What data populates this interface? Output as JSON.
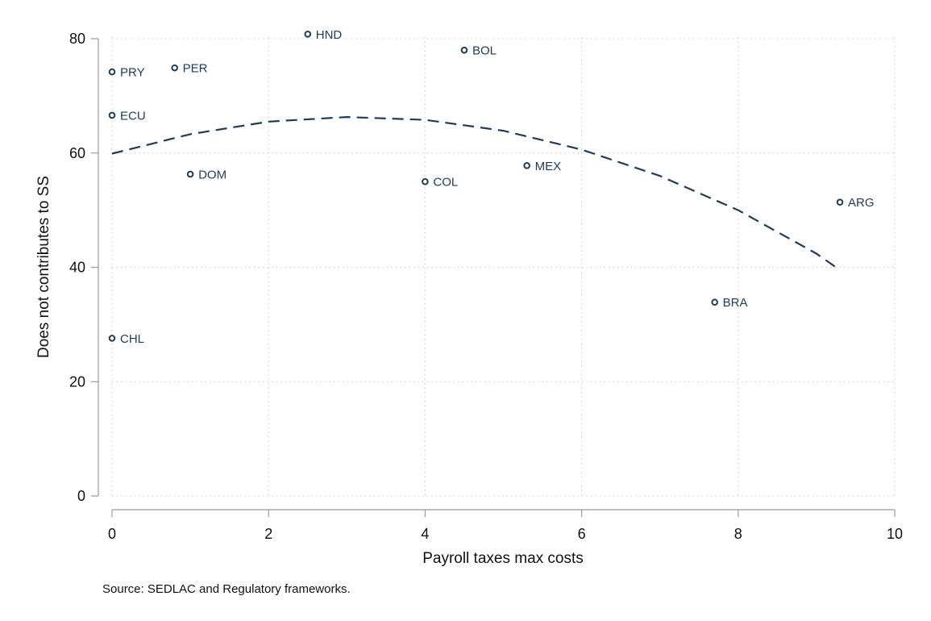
{
  "chart_data": {
    "type": "scatter",
    "title": "",
    "xlabel": "Payroll taxes max costs",
    "ylabel": "Does not contributes to SS",
    "xlim": [
      0,
      10
    ],
    "ylim": [
      0,
      80
    ],
    "xticks": [
      0,
      2,
      4,
      6,
      8,
      10
    ],
    "yticks": [
      0,
      20,
      40,
      60,
      80
    ],
    "grid": true,
    "points": [
      {
        "label": "HND",
        "x": 2.5,
        "y": 80.8
      },
      {
        "label": "BOL",
        "x": 4.5,
        "y": 78.0
      },
      {
        "label": "PRY",
        "x": 0.0,
        "y": 74.2
      },
      {
        "label": "PER",
        "x": 0.8,
        "y": 74.9
      },
      {
        "label": "ECU",
        "x": 0.0,
        "y": 66.6
      },
      {
        "label": "DOM",
        "x": 1.0,
        "y": 56.3
      },
      {
        "label": "COL",
        "x": 4.0,
        "y": 55.0
      },
      {
        "label": "MEX",
        "x": 5.3,
        "y": 57.8
      },
      {
        "label": "ARG",
        "x": 9.3,
        "y": 51.4
      },
      {
        "label": "BRA",
        "x": 7.7,
        "y": 33.9
      },
      {
        "label": "CHL",
        "x": 0.0,
        "y": 27.6
      }
    ],
    "fit": {
      "kind": "quadratic",
      "style": "dashed",
      "x": [
        0,
        1,
        2,
        3,
        4,
        5,
        6,
        7,
        8,
        9,
        9.25
      ],
      "y": [
        59.9,
        63.3,
        65.5,
        66.3,
        65.8,
        63.9,
        60.6,
        56.0,
        50.0,
        42.4,
        40.0
      ]
    },
    "note": "Source: SEDLAC and Regulatory frameworks.",
    "colors": {
      "marker": "#1f3b57",
      "fit": "#1f3b57",
      "grid": "#c8c8c8",
      "axis": "#9a9a9a"
    }
  }
}
